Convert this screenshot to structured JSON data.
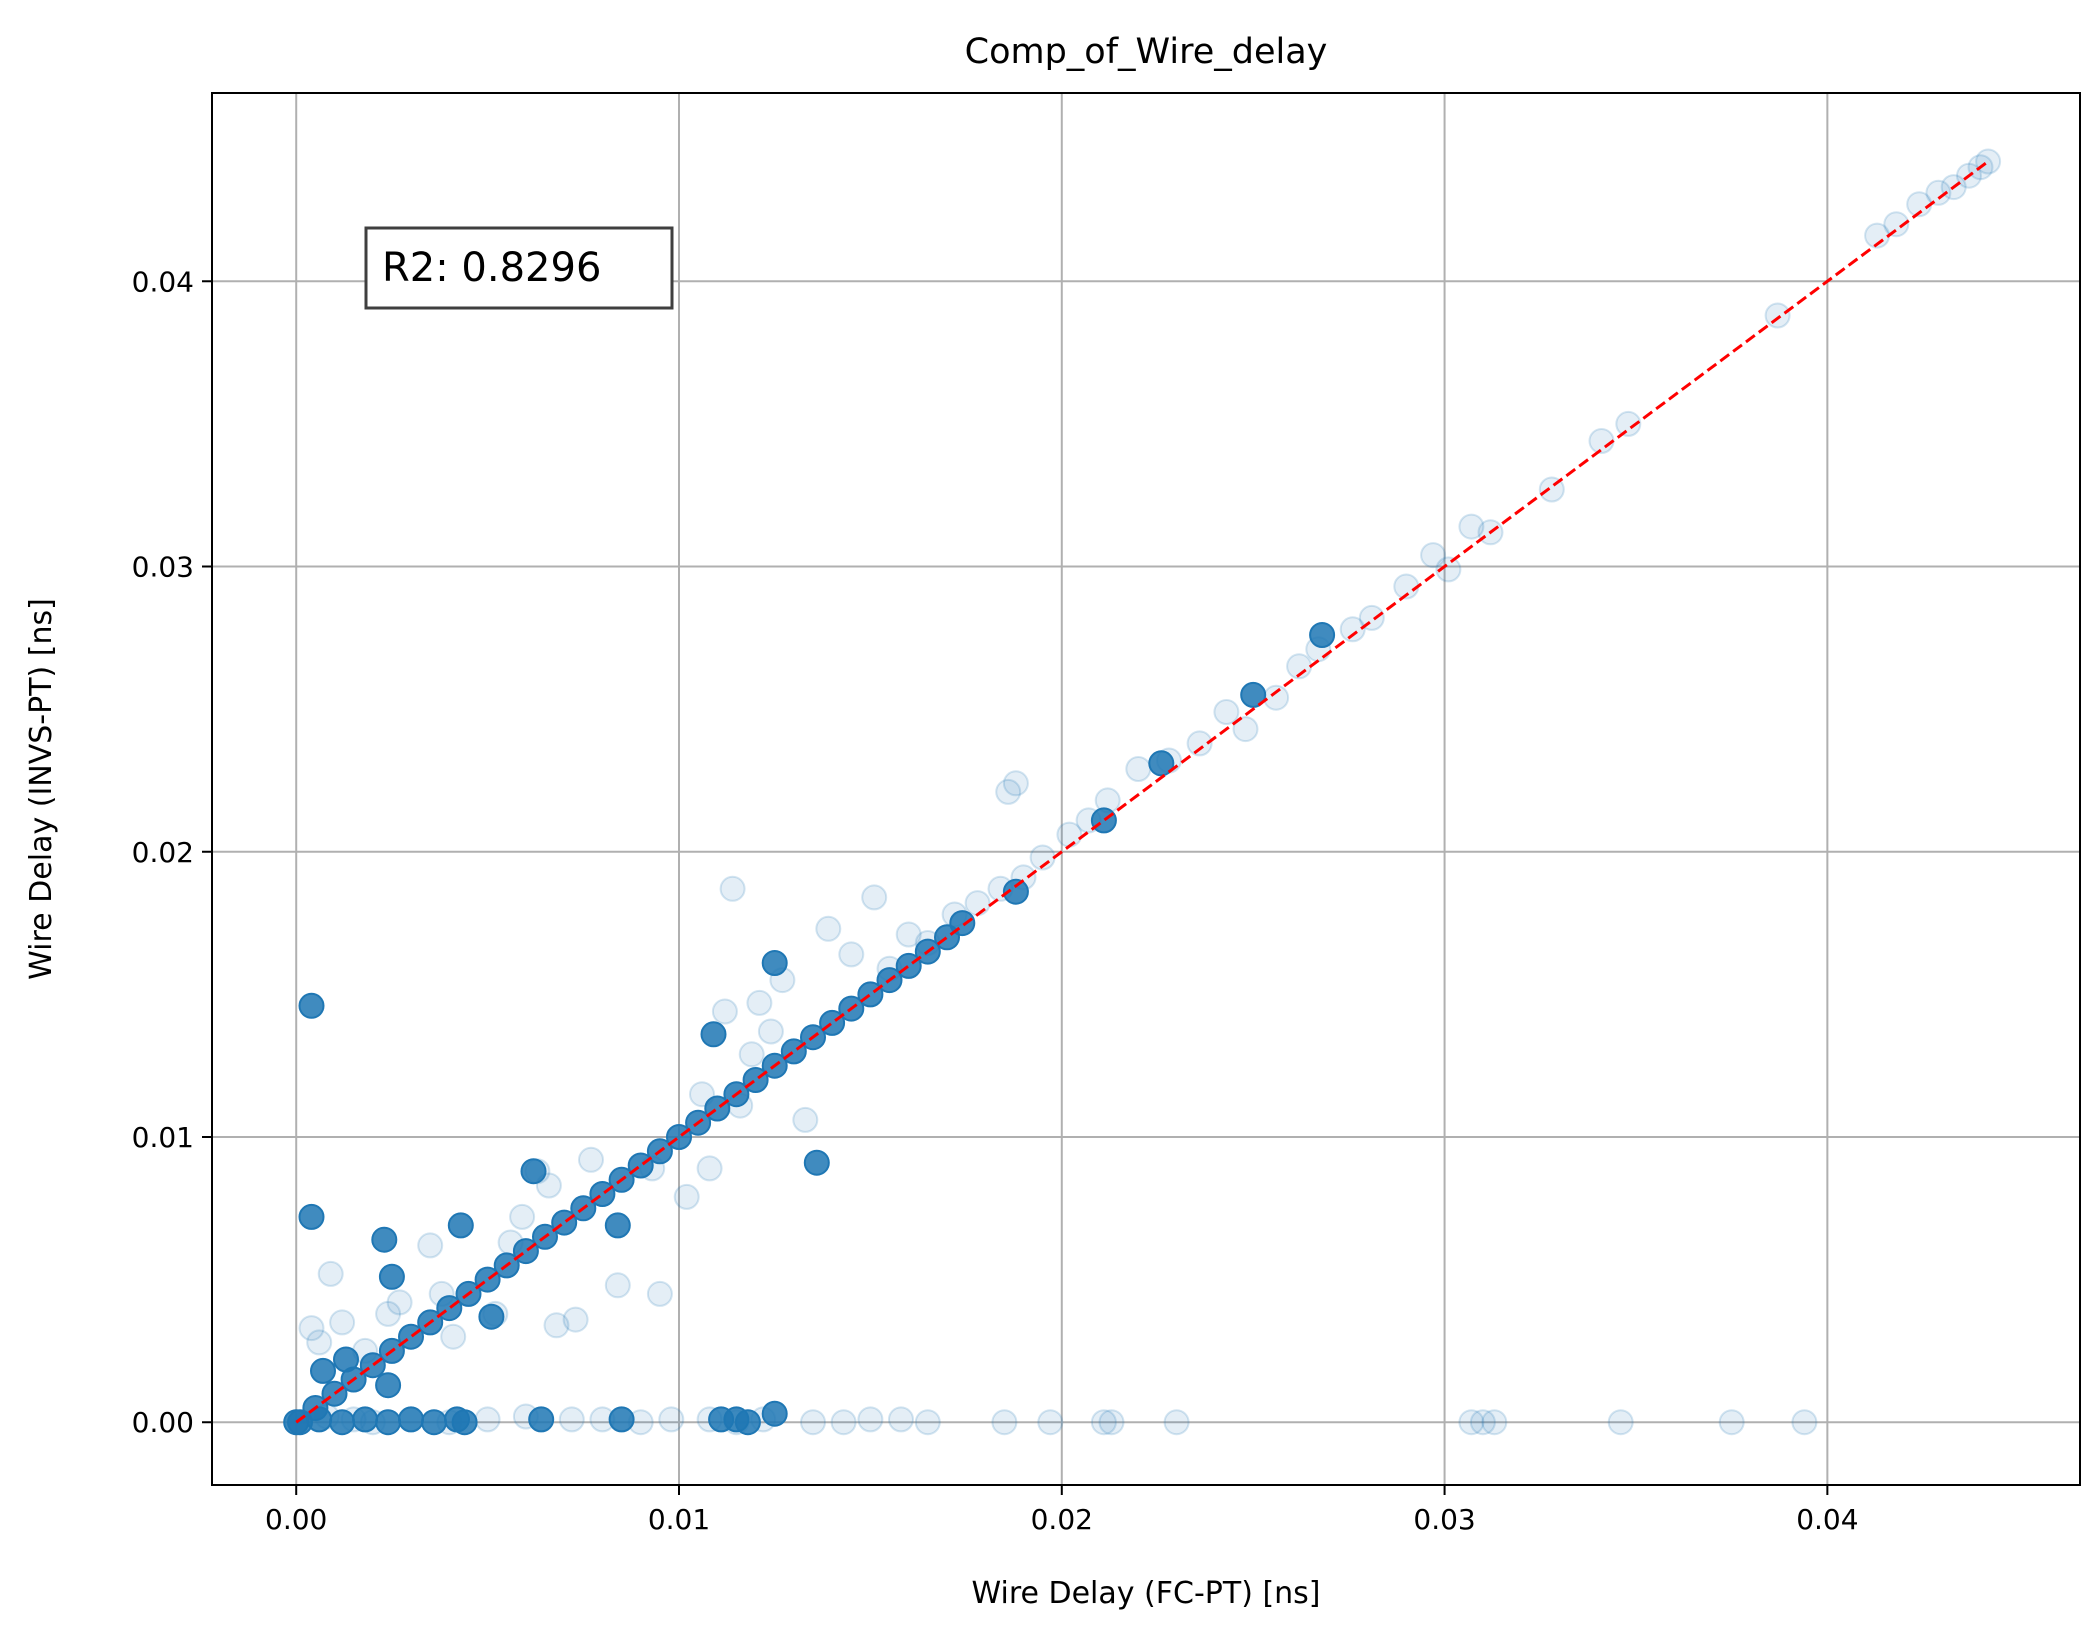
{
  "chart_data": {
    "type": "scatter",
    "title": "Comp_of_Wire_delay",
    "xlabel": "Wire Delay (FC-PT) [ns]",
    "ylabel": "Wire Delay (INVS-PT) [ns]",
    "xlim": [
      -0.0022,
      0.0466
    ],
    "ylim": [
      -0.0022,
      0.0466
    ],
    "xticks": [
      0.0,
      0.01,
      0.02,
      0.03,
      0.04
    ],
    "yticks": [
      0.0,
      0.01,
      0.02,
      0.03,
      0.04
    ],
    "xtick_labels": [
      "0.00",
      "0.01",
      "0.02",
      "0.03",
      "0.04"
    ],
    "ytick_labels": [
      "0.00",
      "0.01",
      "0.02",
      "0.03",
      "0.04"
    ],
    "grid": true,
    "annotation": "R2: 0.8296",
    "reference_line": {
      "x": [
        0.0,
        0.0442
      ],
      "y": [
        0.0,
        0.0442
      ],
      "color": "#ff0000",
      "style": "dashed"
    },
    "series": [
      {
        "color": "#1f77b4",
        "alpha": 0.12,
        "points": [
          [
            0.0,
            0.0
          ],
          [
            0.0008,
            0.0002
          ],
          [
            0.0015,
            0.0001
          ],
          [
            0.002,
            0.0
          ],
          [
            0.003,
            0.0001
          ],
          [
            0.004,
            0.0
          ],
          [
            0.005,
            0.0001
          ],
          [
            0.006,
            0.0002
          ],
          [
            0.0072,
            0.0001
          ],
          [
            0.008,
            0.0001
          ],
          [
            0.009,
            0.0
          ],
          [
            0.0098,
            0.0001
          ],
          [
            0.0108,
            0.0001
          ],
          [
            0.0115,
            0.0
          ],
          [
            0.0122,
            0.0001
          ],
          [
            0.0135,
            0.0
          ],
          [
            0.0143,
            0.0
          ],
          [
            0.015,
            0.0001
          ],
          [
            0.0158,
            0.0001
          ],
          [
            0.0165,
            0.0
          ],
          [
            0.0185,
            0.0
          ],
          [
            0.0197,
            0.0
          ],
          [
            0.0211,
            0.0
          ],
          [
            0.0213,
            0.0
          ],
          [
            0.023,
            0.0
          ],
          [
            0.0307,
            0.0
          ],
          [
            0.031,
            0.0
          ],
          [
            0.0313,
            0.0
          ],
          [
            0.0346,
            0.0
          ],
          [
            0.0375,
            0.0
          ],
          [
            0.0394,
            0.0
          ],
          [
            0.0004,
            0.0033
          ],
          [
            0.0006,
            0.0028
          ],
          [
            0.0009,
            0.0052
          ],
          [
            0.0012,
            0.0035
          ],
          [
            0.0018,
            0.0025
          ],
          [
            0.0024,
            0.0038
          ],
          [
            0.0027,
            0.0042
          ],
          [
            0.0035,
            0.0062
          ],
          [
            0.0038,
            0.0045
          ],
          [
            0.0041,
            0.003
          ],
          [
            0.0052,
            0.0038
          ],
          [
            0.0056,
            0.0063
          ],
          [
            0.0059,
            0.0072
          ],
          [
            0.0063,
            0.0088
          ],
          [
            0.0066,
            0.0083
          ],
          [
            0.0068,
            0.0034
          ],
          [
            0.0073,
            0.0036
          ],
          [
            0.0077,
            0.0092
          ],
          [
            0.0084,
            0.0048
          ],
          [
            0.0093,
            0.0089
          ],
          [
            0.0095,
            0.0045
          ],
          [
            0.0102,
            0.0079
          ],
          [
            0.0106,
            0.0115
          ],
          [
            0.0108,
            0.0089
          ],
          [
            0.0112,
            0.0144
          ],
          [
            0.0114,
            0.0187
          ],
          [
            0.0116,
            0.0111
          ],
          [
            0.0119,
            0.0129
          ],
          [
            0.0121,
            0.0147
          ],
          [
            0.0124,
            0.0137
          ],
          [
            0.0127,
            0.0155
          ],
          [
            0.0133,
            0.0106
          ],
          [
            0.0139,
            0.0173
          ],
          [
            0.0145,
            0.0164
          ],
          [
            0.0151,
            0.0184
          ],
          [
            0.0155,
            0.0159
          ],
          [
            0.016,
            0.0171
          ],
          [
            0.0165,
            0.0168
          ],
          [
            0.0172,
            0.0178
          ],
          [
            0.0178,
            0.0182
          ],
          [
            0.0184,
            0.0187
          ],
          [
            0.0186,
            0.0221
          ],
          [
            0.0188,
            0.0224
          ],
          [
            0.019,
            0.0191
          ],
          [
            0.0195,
            0.0198
          ],
          [
            0.0202,
            0.0206
          ],
          [
            0.0207,
            0.0211
          ],
          [
            0.0212,
            0.0218
          ],
          [
            0.022,
            0.0229
          ],
          [
            0.0228,
            0.0232
          ],
          [
            0.0236,
            0.0238
          ],
          [
            0.0243,
            0.0249
          ],
          [
            0.0248,
            0.0243
          ],
          [
            0.0256,
            0.0254
          ],
          [
            0.0262,
            0.0265
          ],
          [
            0.0267,
            0.0271
          ],
          [
            0.0276,
            0.0278
          ],
          [
            0.0281,
            0.0282
          ],
          [
            0.029,
            0.0293
          ],
          [
            0.0297,
            0.0304
          ],
          [
            0.0301,
            0.0299
          ],
          [
            0.0307,
            0.0314
          ],
          [
            0.0312,
            0.0312
          ],
          [
            0.0328,
            0.0327
          ],
          [
            0.0341,
            0.0344
          ],
          [
            0.0348,
            0.035
          ],
          [
            0.0387,
            0.0388
          ],
          [
            0.0413,
            0.0416
          ],
          [
            0.0418,
            0.042
          ],
          [
            0.0424,
            0.0427
          ],
          [
            0.0429,
            0.0431
          ],
          [
            0.0433,
            0.0433
          ],
          [
            0.0437,
            0.0437
          ],
          [
            0.044,
            0.044
          ],
          [
            0.0442,
            0.0442
          ]
        ]
      },
      {
        "color": "#1f77b4",
        "alpha": 0.85,
        "points": [
          [
            0.0,
            0.0
          ],
          [
            0.0005,
            0.0005
          ],
          [
            0.001,
            0.001
          ],
          [
            0.0015,
            0.0015
          ],
          [
            0.002,
            0.002
          ],
          [
            0.0025,
            0.0025
          ],
          [
            0.003,
            0.003
          ],
          [
            0.0035,
            0.0035
          ],
          [
            0.004,
            0.004
          ],
          [
            0.0045,
            0.0045
          ],
          [
            0.005,
            0.005
          ],
          [
            0.0055,
            0.0055
          ],
          [
            0.006,
            0.006
          ],
          [
            0.0065,
            0.0065
          ],
          [
            0.007,
            0.007
          ],
          [
            0.0075,
            0.0075
          ],
          [
            0.008,
            0.008
          ],
          [
            0.0085,
            0.0085
          ],
          [
            0.009,
            0.009
          ],
          [
            0.0095,
            0.0095
          ],
          [
            0.01,
            0.01
          ],
          [
            0.0105,
            0.0105
          ],
          [
            0.011,
            0.011
          ],
          [
            0.0115,
            0.0115
          ],
          [
            0.012,
            0.012
          ],
          [
            0.0125,
            0.0125
          ],
          [
            0.013,
            0.013
          ],
          [
            0.0135,
            0.0135
          ],
          [
            0.014,
            0.014
          ],
          [
            0.0145,
            0.0145
          ],
          [
            0.015,
            0.015
          ],
          [
            0.0155,
            0.0155
          ],
          [
            0.016,
            0.016
          ],
          [
            0.0165,
            0.0165
          ],
          [
            0.017,
            0.017
          ],
          [
            0.0174,
            0.0175
          ],
          [
            0.0001,
            0.0
          ],
          [
            0.0006,
            0.0001
          ],
          [
            0.0012,
            0.0
          ],
          [
            0.0018,
            0.0001
          ],
          [
            0.0024,
            0.0
          ],
          [
            0.003,
            0.0001
          ],
          [
            0.0036,
            0.0
          ],
          [
            0.0042,
            0.0001
          ],
          [
            0.0044,
            0.0
          ],
          [
            0.0064,
            0.0001
          ],
          [
            0.0085,
            0.0001
          ],
          [
            0.0111,
            0.0001
          ],
          [
            0.0115,
            0.0001
          ],
          [
            0.0118,
            0.0
          ],
          [
            0.0125,
            0.0003
          ],
          [
            0.0004,
            0.0146
          ],
          [
            0.0004,
            0.0072
          ],
          [
            0.0007,
            0.0018
          ],
          [
            0.0013,
            0.0022
          ],
          [
            0.0023,
            0.0064
          ],
          [
            0.0025,
            0.0051
          ],
          [
            0.0024,
            0.0013
          ],
          [
            0.0043,
            0.0069
          ],
          [
            0.0051,
            0.0037
          ],
          [
            0.0062,
            0.0088
          ],
          [
            0.0084,
            0.0069
          ],
          [
            0.0109,
            0.0136
          ],
          [
            0.0125,
            0.0161
          ],
          [
            0.0136,
            0.0091
          ],
          [
            0.0188,
            0.0186
          ],
          [
            0.0211,
            0.0211
          ],
          [
            0.0226,
            0.0231
          ],
          [
            0.025,
            0.0255
          ],
          [
            0.0268,
            0.0276
          ]
        ]
      }
    ]
  }
}
